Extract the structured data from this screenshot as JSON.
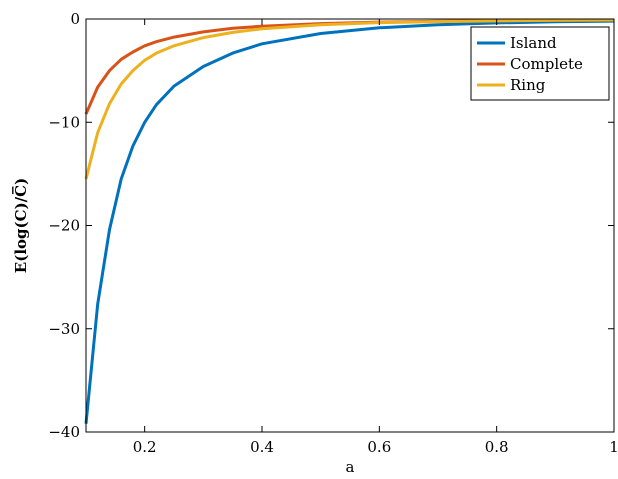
{
  "chart_data": {
    "type": "line",
    "title": "",
    "xlabel": "a",
    "ylabel": "E(log(C)/C̅)",
    "xlim": [
      0.1,
      1.0
    ],
    "ylim": [
      -40,
      0
    ],
    "xticks": [
      0.2,
      0.4,
      0.6,
      0.8,
      1.0
    ],
    "xtick_labels": [
      "0.2",
      "0.4",
      "0.6",
      "0.8",
      "1"
    ],
    "yticks": [
      -40,
      -30,
      -20,
      -10,
      0
    ],
    "ytick_labels": [
      "−40",
      "−30",
      "−20",
      "−10",
      "0"
    ],
    "grid": false,
    "legend_position": "top-right",
    "series": [
      {
        "name": "Island",
        "color": "#0072bd",
        "x": [
          0.1,
          0.12,
          0.14,
          0.16,
          0.18,
          0.2,
          0.22,
          0.25,
          0.3,
          0.35,
          0.4,
          0.5,
          0.6,
          0.7,
          0.8,
          0.9,
          1.0
        ],
        "y": [
          -39.2,
          -27.6,
          -20.4,
          -15.5,
          -12.3,
          -10.0,
          -8.3,
          -6.5,
          -4.6,
          -3.3,
          -2.4,
          -1.4,
          -0.85,
          -0.55,
          -0.38,
          -0.27,
          -0.2
        ]
      },
      {
        "name": "Complete",
        "color": "#d95319",
        "x": [
          0.1,
          0.12,
          0.14,
          0.16,
          0.18,
          0.2,
          0.22,
          0.25,
          0.3,
          0.35,
          0.4,
          0.5,
          0.6,
          0.7,
          0.8,
          0.9,
          1.0
        ],
        "y": [
          -9.2,
          -6.6,
          -5.0,
          -3.9,
          -3.2,
          -2.6,
          -2.2,
          -1.75,
          -1.25,
          -0.9,
          -0.7,
          -0.45,
          -0.3,
          -0.22,
          -0.16,
          -0.12,
          -0.1
        ]
      },
      {
        "name": "Ring",
        "color": "#edb120",
        "x": [
          0.1,
          0.12,
          0.14,
          0.16,
          0.18,
          0.2,
          0.22,
          0.25,
          0.3,
          0.35,
          0.4,
          0.5,
          0.6,
          0.7,
          0.8,
          0.9,
          1.0
        ],
        "y": [
          -15.5,
          -11.0,
          -8.2,
          -6.3,
          -5.0,
          -4.0,
          -3.3,
          -2.6,
          -1.8,
          -1.3,
          -0.95,
          -0.55,
          -0.35,
          -0.25,
          -0.18,
          -0.13,
          -0.1
        ]
      }
    ]
  }
}
